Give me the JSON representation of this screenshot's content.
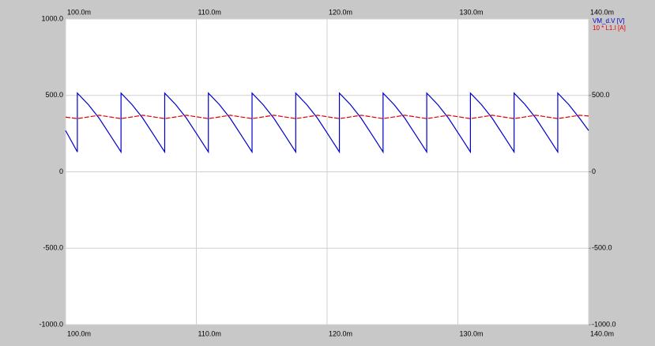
{
  "chart_data": {
    "type": "line",
    "x": [
      100,
      100.9,
      100.9,
      101.74,
      102.57,
      103.41,
      104.24,
      104.24,
      105.08,
      105.91,
      106.75,
      107.58,
      107.58,
      108.42,
      109.25,
      110.09,
      110.92,
      110.92,
      111.76,
      112.59,
      113.43,
      114.26,
      114.26,
      115.1,
      115.93,
      116.77,
      117.6,
      117.6,
      118.44,
      119.27,
      120.11,
      120.94,
      120.94,
      121.78,
      122.61,
      123.45,
      124.28,
      124.28,
      125.12,
      125.95,
      126.79,
      127.62,
      127.62,
      128.46,
      129.29,
      130.13,
      130.96,
      130.96,
      131.8,
      132.63,
      133.47,
      134.3,
      134.3,
      135.14,
      135.97,
      136.81,
      137.64,
      137.64,
      138.48,
      139.31,
      140
    ],
    "series": [
      {
        "name": "VM_d.V [V]",
        "color": "#0000cc",
        "dashed": false,
        "values": [
          270,
          130,
          515,
          440,
          350,
          240,
          130,
          515,
          440,
          350,
          240,
          130,
          515,
          440,
          350,
          240,
          130,
          515,
          440,
          350,
          240,
          130,
          515,
          440,
          350,
          240,
          130,
          515,
          440,
          350,
          240,
          130,
          515,
          440,
          350,
          240,
          130,
          515,
          440,
          350,
          240,
          130,
          515,
          440,
          350,
          240,
          130,
          515,
          440,
          350,
          240,
          130,
          515,
          440,
          350,
          240,
          130,
          515,
          440,
          350,
          270
        ]
      },
      {
        "name": "10 * L1.I [A]",
        "color": "#e00000",
        "dashed": true,
        "x": [
          100,
          100.9,
          102.57,
          104.24,
          105.91,
          107.58,
          109.25,
          110.92,
          112.59,
          114.26,
          115.93,
          117.6,
          119.27,
          120.94,
          122.61,
          124.28,
          125.95,
          127.62,
          129.29,
          130.96,
          132.63,
          134.3,
          135.97,
          137.64,
          139.31,
          140
        ],
        "values": [
          358,
          348,
          370,
          348,
          370,
          348,
          370,
          348,
          370,
          348,
          370,
          348,
          370,
          348,
          370,
          348,
          370,
          348,
          370,
          348,
          370,
          348,
          370,
          348,
          370,
          365
        ]
      }
    ],
    "xlim": [
      100,
      140
    ],
    "xticks": [
      {
        "value": 100,
        "label": "100.0m"
      },
      {
        "value": 110,
        "label": "110.0m"
      },
      {
        "value": 120,
        "label": "120.0m"
      },
      {
        "value": 130,
        "label": "130.0m"
      },
      {
        "value": 140,
        "label": "140.0m"
      }
    ],
    "ylim": [
      -1000,
      1000
    ],
    "yticks": [
      {
        "value": 1000,
        "label": "1000.0"
      },
      {
        "value": 500,
        "label": "500.0"
      },
      0,
      {
        "value": -500,
        "label": "-500.0"
      },
      {
        "value": -1000,
        "label": "-1000.0"
      }
    ],
    "y2lim": [
      -1000,
      1000
    ],
    "y2ticks": [
      {
        "value": 500,
        "label": "500.0"
      },
      0,
      {
        "value": -500,
        "label": "-500.0"
      },
      {
        "value": -1000,
        "label": "-1000.0"
      }
    ],
    "grid": true,
    "legend": "top-right"
  }
}
